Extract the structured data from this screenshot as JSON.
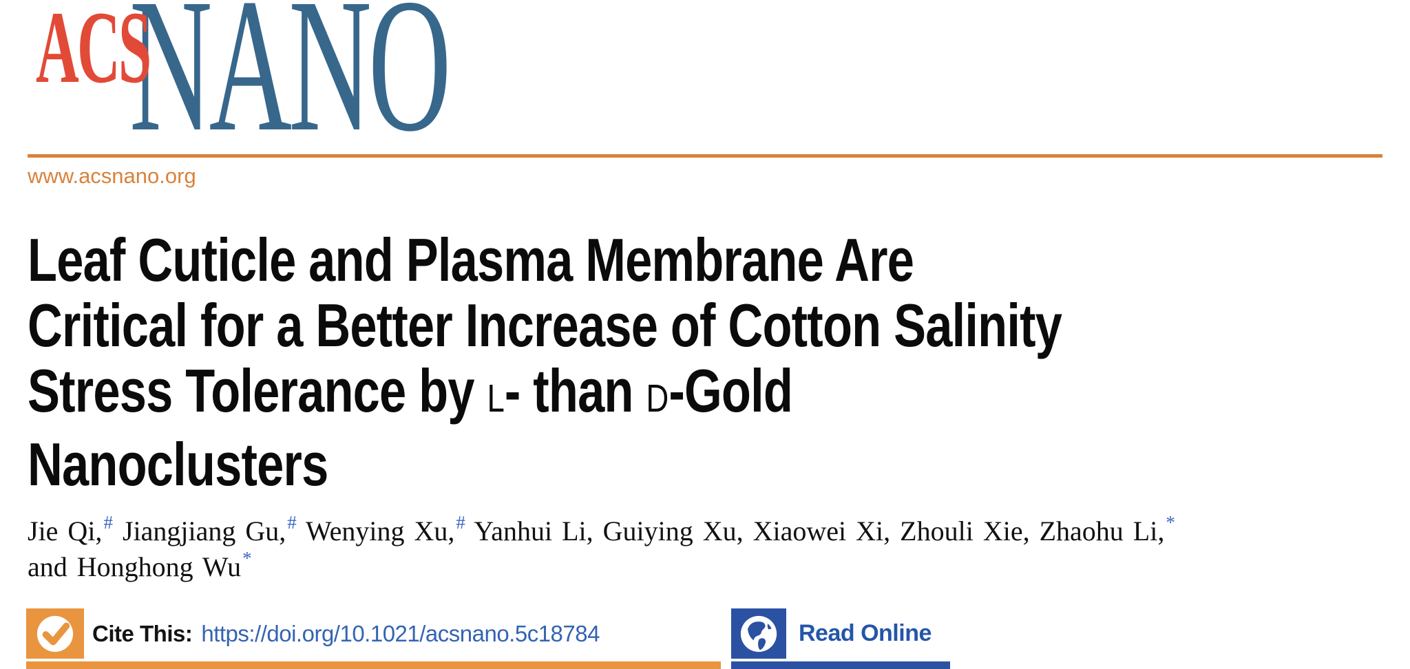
{
  "theme": {
    "logo_red": "#e24a38",
    "logo_blue": "#38678c",
    "orange": "#e9953f",
    "orange_dark": "#d9823a",
    "doi_blue": "#3464b2",
    "read_blue": "#2b51a3",
    "read_text_blue": "#2456a8",
    "sup_blue": "#3c68c5",
    "ink": "#0b0b0b"
  },
  "masthead": {
    "logo_acs": "ACS",
    "logo_nano": "NANO",
    "website": "www.acsnano.org"
  },
  "article": {
    "title_lines": [
      [
        {
          "t": "Leaf Cuticle and Plasma Membrane Are"
        }
      ],
      [
        {
          "t": "Critical for a Better Increase of Cotton Salinity"
        }
      ],
      [
        {
          "t": "Stress Tolerance by "
        },
        {
          "t": "L",
          "sc": true
        },
        {
          "t": "- than "
        },
        {
          "t": "D",
          "sc": true
        },
        {
          "t": "-Gold"
        }
      ],
      [
        {
          "t": "Nanoclusters"
        }
      ]
    ],
    "authors": [
      {
        "text": "Jie Qi,",
        "sup": "#"
      },
      {
        "text": " Jiangjiang Gu,",
        "sup": "#"
      },
      {
        "text": " Wenying Xu,",
        "sup": "#"
      },
      {
        "text": " Yanhui Li, Guiying Xu, Xiaowei Xi, Zhouli Xie, Zhaohu Li,",
        "sup": "*"
      },
      {
        "br": true
      },
      {
        "text": "and Honghong Wu",
        "sup": "*"
      }
    ]
  },
  "cite": {
    "label": "Cite This:",
    "doi": "https://doi.org/10.1021/acsnano.5c18784"
  },
  "read": {
    "label": "Read Online"
  },
  "icons": {
    "checkmark": "checkmark-icon",
    "globe": "globe-icon"
  }
}
